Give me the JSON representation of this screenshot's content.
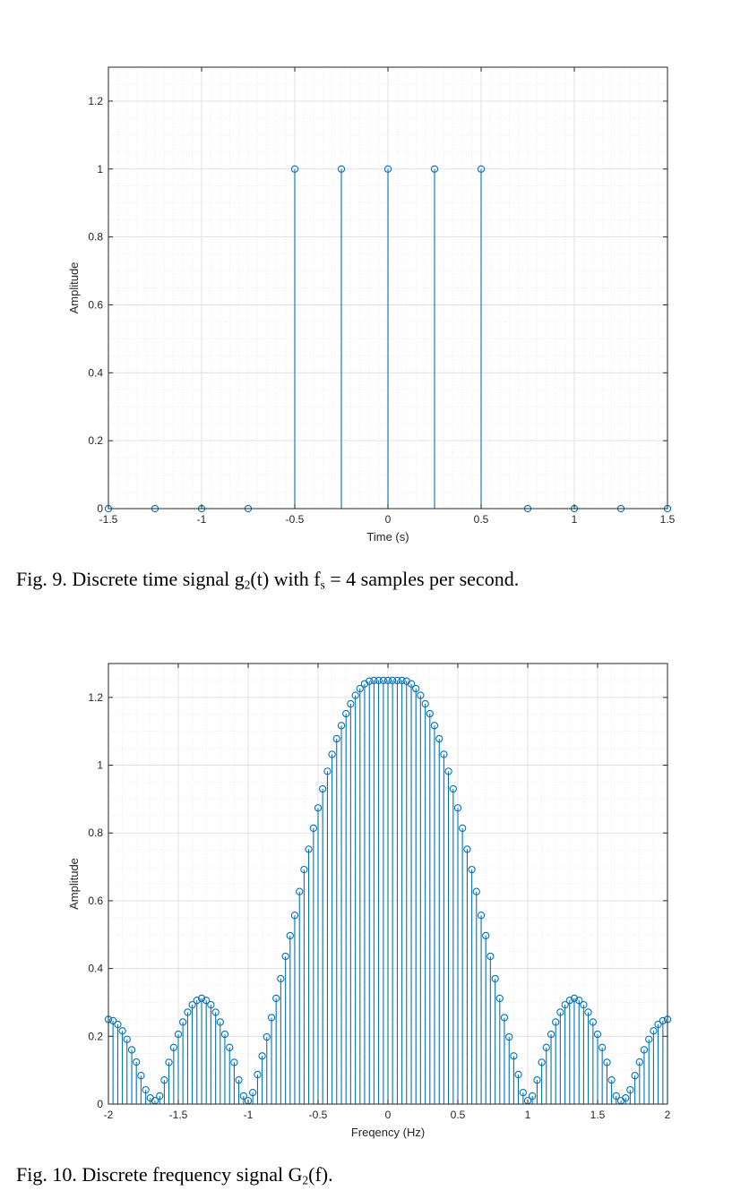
{
  "chart_data": [
    {
      "type": "stem",
      "xlabel": "Time (s)",
      "ylabel": "Amplitude",
      "xlim": [
        -1.5,
        1.5
      ],
      "ylim": [
        0,
        1.3
      ],
      "xticks": [
        -1.5,
        -1,
        -0.5,
        0,
        0.5,
        1,
        1.5
      ],
      "xtick_labels": [
        "-1.5",
        "-1",
        "-0.5",
        "0",
        "0.5",
        "1",
        "1.5"
      ],
      "yticks": [
        0,
        0.2,
        0.4,
        0.6,
        0.8,
        1,
        1.2
      ],
      "ytick_labels": [
        "0",
        "0.2",
        "0.4",
        "0.6",
        "0.8",
        "1",
        "1.2"
      ],
      "grid": true,
      "minor_grid": true,
      "color": "#0072BD",
      "x": [
        -1.5,
        -1.25,
        -1,
        -0.75,
        -0.5,
        -0.25,
        0,
        0.25,
        0.5,
        0.75,
        1,
        1.25,
        1.5
      ],
      "y": [
        0,
        0,
        0,
        0,
        1,
        1,
        1,
        1,
        1,
        0,
        0,
        0,
        0
      ]
    },
    {
      "type": "stem",
      "xlabel": "Freqency (Hz)",
      "ylabel": "Amplitude",
      "xlim": [
        -2,
        2
      ],
      "ylim": [
        0,
        1.3
      ],
      "xticks": [
        -2,
        -1.5,
        -1,
        -0.5,
        0,
        0.5,
        1,
        1.5,
        2
      ],
      "xtick_labels": [
        "-2",
        "-1.5",
        "-1",
        "-0.5",
        "0",
        "0.5",
        "1",
        "1.5",
        "2"
      ],
      "yticks": [
        0,
        0.2,
        0.4,
        0.6,
        0.8,
        1,
        1.2
      ],
      "ytick_labels": [
        "0",
        "0.2",
        "0.4",
        "0.6",
        "0.8",
        "1",
        "1.2"
      ],
      "grid": true,
      "minor_grid": true,
      "color": "#0072BD",
      "x": [
        -2,
        -1.967,
        -1.933,
        -1.9,
        -1.867,
        -1.833,
        -1.8,
        -1.767,
        -1.733,
        -1.7,
        -1.667,
        -1.633,
        -1.6,
        -1.567,
        -1.533,
        -1.5,
        -1.467,
        -1.433,
        -1.4,
        -1.367,
        -1.333,
        -1.3,
        -1.267,
        -1.233,
        -1.2,
        -1.167,
        -1.133,
        -1.1,
        -1.067,
        -1.033,
        -1,
        -0.967,
        -0.933,
        -0.9,
        -0.867,
        -0.833,
        -0.8,
        -0.767,
        -0.733,
        -0.7,
        -0.667,
        -0.633,
        -0.6,
        -0.567,
        -0.533,
        -0.5,
        -0.467,
        -0.433,
        -0.4,
        -0.367,
        -0.333,
        -0.3,
        -0.267,
        -0.233,
        -0.2,
        -0.167,
        -0.133,
        -0.1,
        -0.067,
        -0.033,
        0,
        0.033,
        0.067,
        0.1,
        0.133,
        0.167,
        0.2,
        0.233,
        0.267,
        0.3,
        0.333,
        0.367,
        0.4,
        0.433,
        0.467,
        0.5,
        0.533,
        0.567,
        0.6,
        0.633,
        0.667,
        0.7,
        0.733,
        0.767,
        0.8,
        0.833,
        0.867,
        0.9,
        0.933,
        0.967,
        1,
        1.033,
        1.067,
        1.1,
        1.133,
        1.167,
        1.2,
        1.233,
        1.267,
        1.3,
        1.333,
        1.367,
        1.4,
        1.433,
        1.467,
        1.5,
        1.533,
        1.567,
        1.6,
        1.633,
        1.667,
        1.7,
        1.733,
        1.767,
        1.8,
        1.833,
        1.867,
        1.9,
        1.933,
        1.967,
        2
      ],
      "y": [
        0.25,
        0.246,
        0.235,
        0.216,
        0.191,
        0.16,
        0.124,
        0.084,
        0.042,
        0.018,
        0.01,
        0.024,
        0.071,
        0.123,
        0.167,
        0.206,
        0.242,
        0.271,
        0.293,
        0.306,
        0.312,
        0.306,
        0.293,
        0.271,
        0.242,
        0.206,
        0.167,
        0.123,
        0.071,
        0.024,
        0.01,
        0.034,
        0.087,
        0.142,
        0.198,
        0.255,
        0.312,
        0.37,
        0.436,
        0.497,
        0.557,
        0.627,
        0.692,
        0.752,
        0.814,
        0.874,
        0.93,
        0.982,
        1.032,
        1.078,
        1.117,
        1.152,
        1.181,
        1.206,
        1.226,
        1.24,
        1.248,
        1.25,
        1.25,
        1.25,
        1.25,
        1.25,
        1.25,
        1.25,
        1.248,
        1.24,
        1.226,
        1.206,
        1.181,
        1.152,
        1.117,
        1.078,
        1.032,
        0.982,
        0.93,
        0.874,
        0.814,
        0.752,
        0.692,
        0.627,
        0.557,
        0.497,
        0.436,
        0.37,
        0.312,
        0.255,
        0.198,
        0.142,
        0.087,
        0.034,
        0.01,
        0.024,
        0.071,
        0.123,
        0.167,
        0.206,
        0.242,
        0.271,
        0.293,
        0.306,
        0.312,
        0.306,
        0.293,
        0.271,
        0.242,
        0.206,
        0.167,
        0.123,
        0.071,
        0.024,
        0.01,
        0.018,
        0.042,
        0.084,
        0.124,
        0.16,
        0.191,
        0.216,
        0.235,
        0.246,
        0.25
      ]
    }
  ],
  "captions": [
    {
      "prefix": "Fig.  9. Discrete time signal g",
      "sub1": "2",
      "mid": "(t) with f",
      "sub2": "s",
      "suffix": " = 4 samples per second."
    },
    {
      "prefix": "Fig.  10. Discrete frequency signal G",
      "sub1": "2",
      "suffix": "(f)."
    }
  ]
}
